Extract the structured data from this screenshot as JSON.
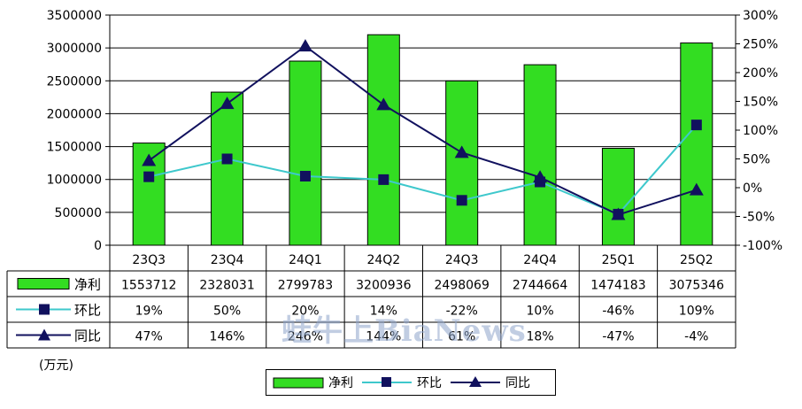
{
  "chart_data": {
    "type": "bar",
    "categories": [
      "23Q3",
      "23Q4",
      "24Q1",
      "24Q2",
      "24Q3",
      "24Q4",
      "25Q1",
      "25Q2"
    ],
    "series": [
      {
        "name": "净利",
        "type": "bar",
        "axis": "left",
        "color": "#33dd22",
        "values": [
          1553712,
          2328031,
          2799783,
          3200936,
          2498069,
          2744664,
          1474183,
          3075346
        ]
      },
      {
        "name": "环比",
        "type": "line",
        "axis": "right",
        "color": "#3ec8cc",
        "marker": "square",
        "values": [
          19,
          50,
          20,
          14,
          -22,
          10,
          -46,
          109
        ]
      },
      {
        "name": "同比",
        "type": "line",
        "axis": "right",
        "color": "#11115e",
        "marker": "triangle",
        "values": [
          47,
          146,
          246,
          144,
          61,
          18,
          -47,
          -4
        ]
      }
    ],
    "table_rows": [
      {
        "name": "净利",
        "cells": [
          "1553712",
          "2328031",
          "2799783",
          "3200936",
          "2498069",
          "2744664",
          "1474183",
          "3075346"
        ]
      },
      {
        "name": "环比",
        "cells": [
          "19%",
          "50%",
          "20%",
          "14%",
          "-22%",
          "10%",
          "-46%",
          "109%"
        ]
      },
      {
        "name": "同比",
        "cells": [
          "47%",
          "146%",
          "246%",
          "144%",
          "61%",
          "18%",
          "-47%",
          "-4%"
        ]
      }
    ],
    "left_axis": {
      "min": 0,
      "max": 3500000,
      "step": 500000,
      "ticks": [
        "0",
        "500000",
        "1000000",
        "1500000",
        "2000000",
        "2500000",
        "3000000",
        "3500000"
      ]
    },
    "right_axis": {
      "min": -100,
      "max": 300,
      "step": 50,
      "ticks": [
        "-100%",
        "-50%",
        "0%",
        "50%",
        "100%",
        "150%",
        "200%",
        "250%",
        "300%"
      ]
    },
    "unit_label": "(万元)",
    "legend": [
      {
        "label": "净利"
      },
      {
        "label": "环比"
      },
      {
        "label": "同比"
      }
    ],
    "legend_position": "bottom",
    "grid": true,
    "watermark": "蛙牛上BiaNews"
  }
}
